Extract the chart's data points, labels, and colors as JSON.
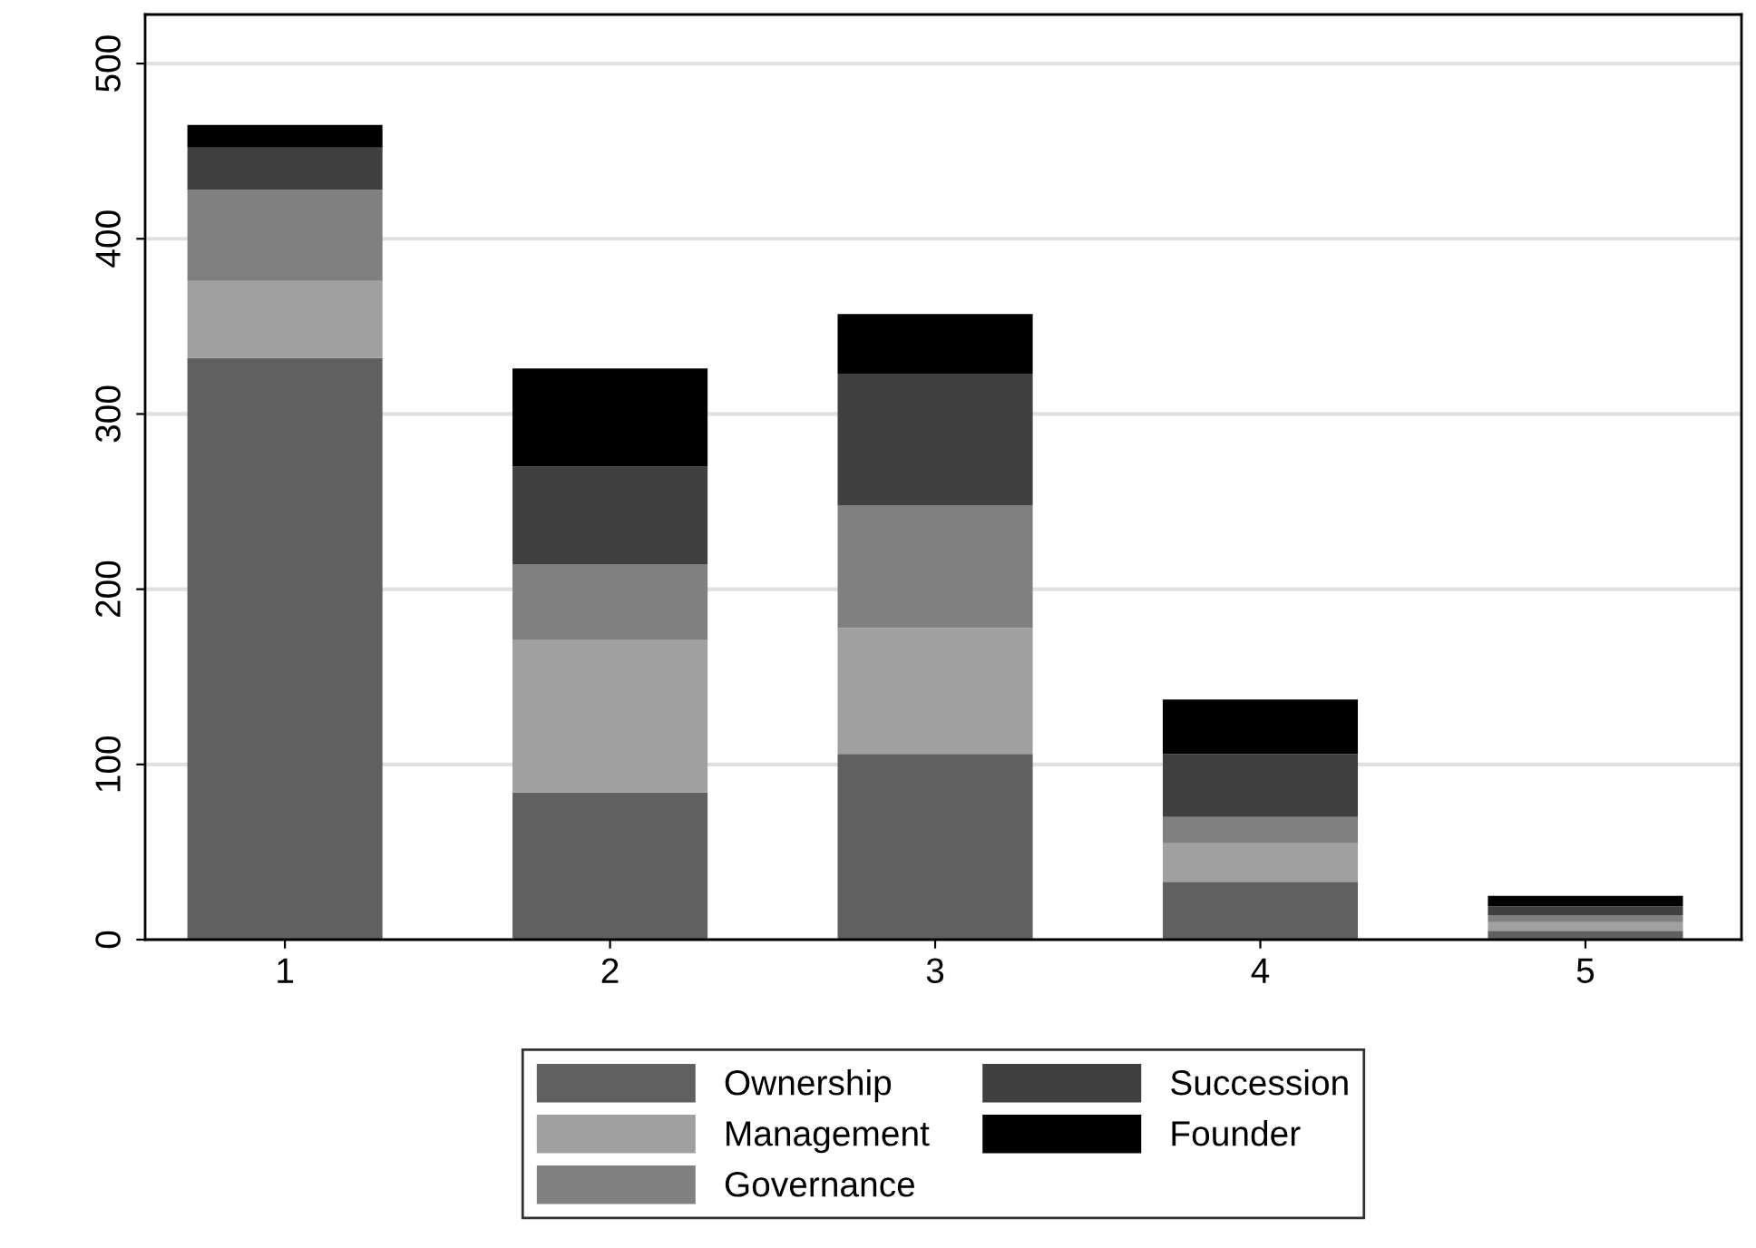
{
  "chart_data": {
    "type": "bar",
    "stacked": true,
    "categories": [
      "1",
      "2",
      "3",
      "4",
      "5"
    ],
    "series": [
      {
        "name": "Ownership",
        "color": "#606060",
        "values": [
          332,
          84,
          106,
          33,
          5
        ]
      },
      {
        "name": "Management",
        "color": "#a0a0a0",
        "values": [
          44,
          87,
          72,
          22,
          5
        ]
      },
      {
        "name": "Governance",
        "color": "#808080",
        "values": [
          52,
          43,
          70,
          15,
          4
        ]
      },
      {
        "name": "Succession",
        "color": "#404040",
        "values": [
          24,
          56,
          75,
          36,
          5
        ]
      },
      {
        "name": "Founder",
        "color": "#000000",
        "values": [
          13,
          56,
          34,
          31,
          6
        ]
      }
    ],
    "ylim": [
      0,
      528
    ],
    "yticks": [
      0,
      100,
      200,
      300,
      400,
      500
    ],
    "grid": "y",
    "legend": "bottom"
  }
}
